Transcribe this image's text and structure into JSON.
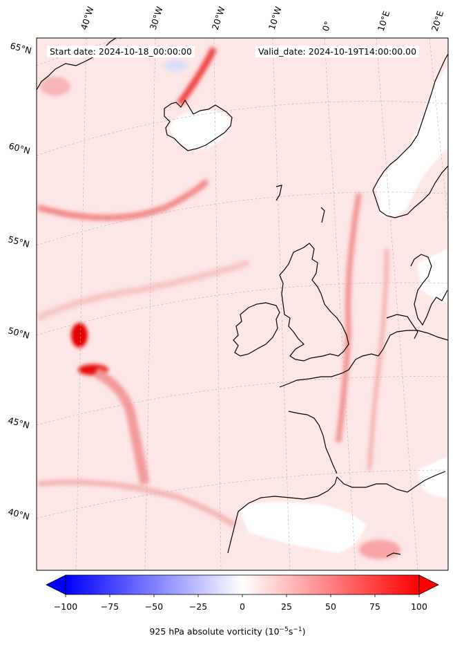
{
  "header": {
    "start_date": "Start date: 2024-10-18_00:00:00",
    "valid_date": "Valid_date: 2024-10-19T14:00:00.00"
  },
  "lon_labels": [
    "40°W",
    "30°W",
    "20°W",
    "10°W",
    "0°",
    "10°E",
    "20°E"
  ],
  "lat_labels": [
    "65°N",
    "60°N",
    "55°N",
    "50°N",
    "45°N",
    "40°N"
  ],
  "colorbar": {
    "ticks": [
      "−100",
      "−75",
      "−50",
      "−25",
      "0",
      "25",
      "50",
      "75",
      "100"
    ],
    "label": "925 hPa absolute vorticity (10",
    "label_exp": "−5",
    "label_mid": "s",
    "label_exp2": "−1",
    "label_end": ")",
    "colors": {
      "min": "#0000ff",
      "mid": "#ffffff",
      "max": "#ff0000"
    },
    "extend": "both"
  },
  "map": {
    "field_background": "#fde6e6",
    "land_color": "#ffffff",
    "coastline_color": "#000000",
    "gridline_style": "dashed grey"
  }
}
